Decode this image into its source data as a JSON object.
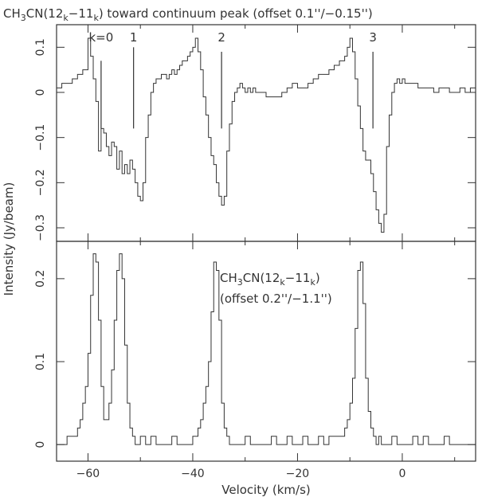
{
  "chart_data": [
    {
      "type": "line",
      "title_parts": {
        "pre": "CH",
        "sub1": "3",
        "mid": "CN(12",
        "sub2": "k",
        "mid2": "−11",
        "sub3": "k",
        "post": ") toward continuum peak (offset 0.1''/−0.15'')"
      },
      "xlim": [
        -66,
        14
      ],
      "ylim": [
        -0.33,
        0.15
      ],
      "yticks": [
        0.1,
        0,
        -0.1,
        -0.2,
        -0.3
      ],
      "ytick_labels": [
        "0.1",
        "0",
        "−0.1",
        "−0.2",
        "−0.3"
      ],
      "xticks": [
        -60,
        -40,
        -20,
        0
      ],
      "grid": false,
      "k_markers": [
        {
          "label": "k=0",
          "x": -57.5,
          "y_top": 0.07,
          "y_bottom": -0.08
        },
        {
          "label": "1",
          "x": -51.3,
          "y_top": 0.1,
          "y_bottom": -0.08
        },
        {
          "label": "2",
          "x": -34.5,
          "y_top": 0.09,
          "y_bottom": -0.08
        },
        {
          "label": "3",
          "x": -5.6,
          "y_top": 0.09,
          "y_bottom": -0.08
        }
      ],
      "series": [
        {
          "x": [
            -66,
            -65,
            -64,
            -63,
            -62,
            -61,
            -60,
            -59.5,
            -59,
            -58.5,
            -58,
            -57.5,
            -57,
            -56.5,
            -56,
            -55.5,
            -55,
            -54.5,
            -54,
            -53.5,
            -53,
            -52.5,
            -52,
            -51.5,
            -51,
            -50.5,
            -50,
            -49.5,
            -49,
            -48.5,
            -48,
            -47.5,
            -47,
            -46.5,
            -46,
            -45.5,
            -45,
            -44.5,
            -44,
            -43.5,
            -43,
            -42.5,
            -42,
            -41.5,
            -41,
            -40.5,
            -40,
            -39.5,
            -39,
            -38.5,
            -38,
            -37.5,
            -37,
            -36.5,
            -36,
            -35.5,
            -35,
            -34.5,
            -34,
            -33.5,
            -33,
            -32.5,
            -32,
            -31.5,
            -31,
            -30.5,
            -30,
            -29.5,
            -29,
            -28.5,
            -28,
            -27,
            -26,
            -25,
            -24,
            -23,
            -22,
            -21,
            -20,
            -19,
            -18,
            -17,
            -16,
            -15,
            -14,
            -13,
            -12,
            -11,
            -10.5,
            -10,
            -9.5,
            -9,
            -8.5,
            -8,
            -7.5,
            -7,
            -6.5,
            -6,
            -5.5,
            -5,
            -4.5,
            -4,
            -3.5,
            -3,
            -2.5,
            -2,
            -1.5,
            -1,
            -0.5,
            0,
            0.5,
            1,
            2,
            3,
            4,
            5,
            6,
            7,
            8,
            9,
            10,
            11,
            12,
            13,
            14
          ],
          "y": [
            0.01,
            0.02,
            0.02,
            0.03,
            0.04,
            0.05,
            0.12,
            0.08,
            0.03,
            -0.02,
            -0.13,
            -0.08,
            -0.09,
            -0.12,
            -0.14,
            -0.11,
            -0.12,
            -0.17,
            -0.13,
            -0.18,
            -0.16,
            -0.18,
            -0.15,
            -0.17,
            -0.2,
            -0.23,
            -0.24,
            -0.2,
            -0.1,
            -0.05,
            0.0,
            0.02,
            0.03,
            0.03,
            0.04,
            0.04,
            0.03,
            0.04,
            0.05,
            0.04,
            0.05,
            0.06,
            0.07,
            0.07,
            0.08,
            0.09,
            0.1,
            0.12,
            0.09,
            0.05,
            -0.01,
            -0.05,
            -0.1,
            -0.14,
            -0.16,
            -0.2,
            -0.23,
            -0.25,
            -0.23,
            -0.13,
            -0.07,
            -0.02,
            0.0,
            0.01,
            0.02,
            0.01,
            0.0,
            0.01,
            0.0,
            0.01,
            0.0,
            0.0,
            -0.01,
            -0.01,
            -0.01,
            0.0,
            0.01,
            0.02,
            0.01,
            0.01,
            0.02,
            0.03,
            0.04,
            0.04,
            0.05,
            0.06,
            0.07,
            0.08,
            0.1,
            0.12,
            0.09,
            0.03,
            -0.03,
            -0.08,
            -0.13,
            -0.15,
            -0.15,
            -0.18,
            -0.22,
            -0.26,
            -0.29,
            -0.31,
            -0.27,
            -0.12,
            -0.05,
            0.0,
            0.02,
            0.03,
            0.02,
            0.03,
            0.02,
            0.02,
            0.02,
            0.01,
            0.01,
            0.01,
            0.0,
            0.01,
            0.01,
            0.0,
            0.0,
            0.01,
            0.0,
            0.01,
            0.01
          ]
        }
      ]
    },
    {
      "type": "line",
      "annotation_line1": {
        "pre": "CH",
        "sub1": "3",
        "mid": "CN(12",
        "sub2": "k",
        "mid2": "−11",
        "sub3": "k",
        "post": ")"
      },
      "annotation_line2": "(offset 0.2''/−1.1'')",
      "xlim": [
        -66,
        14
      ],
      "ylim": [
        -0.02,
        0.245
      ],
      "yticks": [
        0.2,
        0.1,
        0
      ],
      "ytick_labels": [
        "0.2",
        "0.1",
        "0"
      ],
      "xticks": [
        -60,
        -40,
        -20,
        0
      ],
      "xtick_labels": [
        "−60",
        "−40",
        "−20",
        "0"
      ],
      "xlabel": "Velocity (km/s)",
      "ylabel": "Intensity (Jy/beam)",
      "grid": false,
      "series": [
        {
          "x": [
            -66,
            -65,
            -64,
            -63,
            -62,
            -61.5,
            -61,
            -60.5,
            -60,
            -59.5,
            -59,
            -58.5,
            -58,
            -57.5,
            -57,
            -56.5,
            -56,
            -55.5,
            -55,
            -54.5,
            -54,
            -53.5,
            -53,
            -52.5,
            -52,
            -51.5,
            -51,
            -50,
            -49,
            -48,
            -47,
            -46,
            -45,
            -44,
            -43,
            -42,
            -41,
            -40,
            -39,
            -38.5,
            -38,
            -37.5,
            -37,
            -36.5,
            -36,
            -35.5,
            -35,
            -34.5,
            -34,
            -33.5,
            -33,
            -32,
            -31,
            -30,
            -29,
            -28,
            -27,
            -26,
            -25,
            -24,
            -23,
            -22,
            -21,
            -20,
            -19,
            -18,
            -17,
            -16,
            -15,
            -14,
            -13,
            -12,
            -11,
            -10.5,
            -10,
            -9.5,
            -9,
            -8.5,
            -8,
            -7.5,
            -7,
            -6.5,
            -6,
            -5.5,
            -5,
            -4.5,
            -4,
            -3,
            -2,
            -1,
            0,
            1,
            2,
            3,
            4,
            5,
            6,
            7,
            8,
            9,
            10,
            11,
            12,
            13,
            14
          ],
          "y": [
            0.0,
            0.0,
            0.01,
            0.01,
            0.02,
            0.03,
            0.05,
            0.07,
            0.11,
            0.18,
            0.23,
            0.22,
            0.15,
            0.07,
            0.03,
            0.03,
            0.05,
            0.09,
            0.15,
            0.21,
            0.23,
            0.2,
            0.12,
            0.05,
            0.02,
            0.01,
            0.0,
            0.01,
            0.0,
            0.01,
            0.0,
            0.0,
            0.0,
            0.01,
            0.0,
            0.0,
            0.0,
            0.01,
            0.02,
            0.03,
            0.05,
            0.07,
            0.1,
            0.16,
            0.22,
            0.21,
            0.15,
            0.05,
            0.02,
            0.01,
            0.0,
            0.0,
            0.0,
            0.01,
            0.0,
            0.0,
            0.0,
            0.0,
            0.01,
            0.0,
            0.0,
            0.01,
            0.0,
            0.0,
            0.01,
            0.0,
            0.0,
            0.01,
            0.0,
            0.01,
            0.01,
            0.01,
            0.02,
            0.03,
            0.05,
            0.08,
            0.14,
            0.21,
            0.22,
            0.17,
            0.08,
            0.04,
            0.02,
            0.01,
            0.0,
            0.01,
            0.0,
            0.0,
            0.01,
            0.0,
            0.0,
            0.0,
            0.01,
            0.0,
            0.01,
            0.0,
            0.0,
            0.0,
            0.01,
            0.0,
            0.0,
            0.0,
            0.0,
            0.0,
            0.0
          ]
        }
      ]
    }
  ]
}
